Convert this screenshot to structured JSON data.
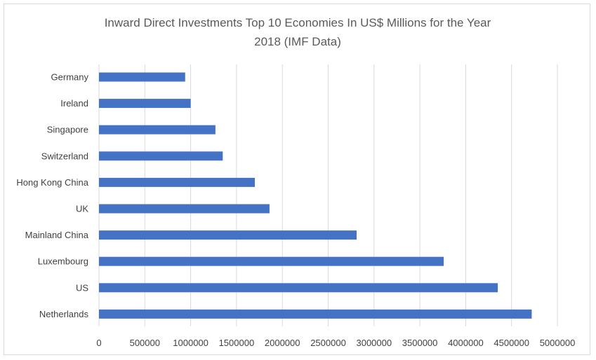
{
  "chart_data": {
    "type": "bar",
    "orientation": "horizontal",
    "title_lines": [
      "Inward Direct Investments Top 10 Economies In US$ Millions for the Year",
      "2018 (IMF Data)"
    ],
    "categories": [
      "Germany",
      "Ireland",
      "Singapore",
      "Switzerland",
      "Hong Kong China",
      "UK",
      "Mainland China",
      "Luxembourg",
      "US",
      "Netherlands"
    ],
    "values": [
      940000,
      1000000,
      1270000,
      1350000,
      1700000,
      1860000,
      2810000,
      3760000,
      4350000,
      4720000
    ],
    "xlim": [
      0,
      5000000
    ],
    "xticks": [
      0,
      500000,
      1000000,
      1500000,
      2000000,
      2500000,
      3000000,
      3500000,
      4000000,
      4500000,
      5000000
    ],
    "xtick_labels": [
      "0",
      "500000",
      "1000000",
      "1500000",
      "2000000",
      "2500000",
      "3000000",
      "3500000",
      "4000000",
      "4500000",
      "5000000"
    ],
    "bar_color": "#4472c4",
    "grid": true,
    "grid_color": "#d9d9d9",
    "legend": false
  }
}
